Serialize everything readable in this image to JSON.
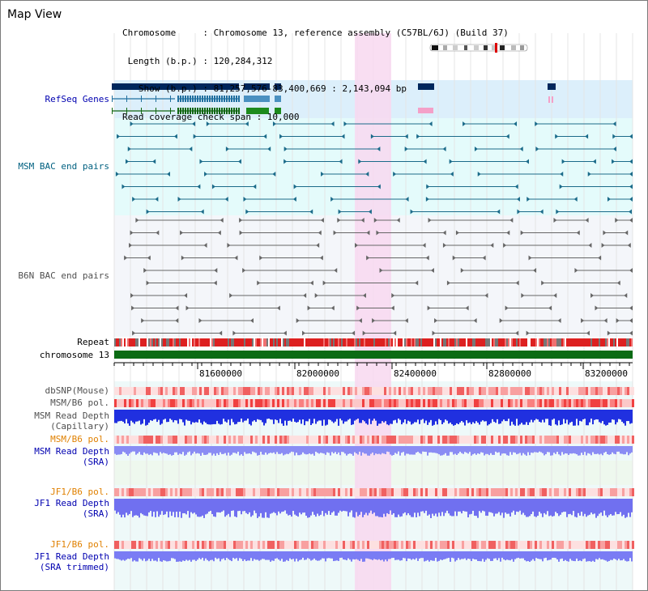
{
  "title": "Map View",
  "info": {
    "chromosome": "Chromosome     : Chromosome 13, reference assembly (C57BL/6J) (Build 37)",
    "length": " Length (b.p.) : 120,284,312",
    "show": "   Show (b.p.) : 81,257,576-83,400,669 : 2,143,094 bp",
    "span": "Read coverage check span : 10,000"
  },
  "tracks": {
    "refseq": "RefSeq Genes",
    "msm_bac": "MSM BAC end pairs",
    "b6n_bac": "B6N BAC end pairs",
    "repeat": "Repeat",
    "chromosome": "chromosome 13",
    "dbsnp": "dbSNP(Mouse)",
    "msm_b6_pol_1": "MSM/B6 pol.",
    "msm_depth_cap_1": "MSM Read Depth",
    "msm_depth_cap_2": "(Capillary)",
    "msm_b6_pol_2": "MSM/B6 pol.",
    "msm_depth_sra_1": "MSM Read Depth",
    "msm_depth_sra_2": "(SRA)",
    "jf1_pol_1": "JF1/B6 pol.",
    "jf1_depth_sra_1": "JF1 Read Depth",
    "jf1_depth_sra_2": "(SRA)",
    "jf1_pol_2": "JF1/B6 pol.",
    "jf1_depth_trim_1": "JF1 Read Depth",
    "jf1_depth_trim_2": "(SRA trimmed)"
  },
  "axis": {
    "ticks": [
      "81600000",
      "82000000",
      "82400000",
      "82800000",
      "83200000"
    ]
  },
  "colors": {
    "navy_label": "#0000b0",
    "teal_label": "#006080",
    "gray_label": "#505050",
    "orange_label": "#e08000",
    "highlight": "#f8d8f0",
    "refseq_bg": "#dceffb",
    "msm_bg": "#e4fbfb",
    "b6n_bg": "#f4f6fa",
    "chrom_green": "#0b6b14"
  }
}
